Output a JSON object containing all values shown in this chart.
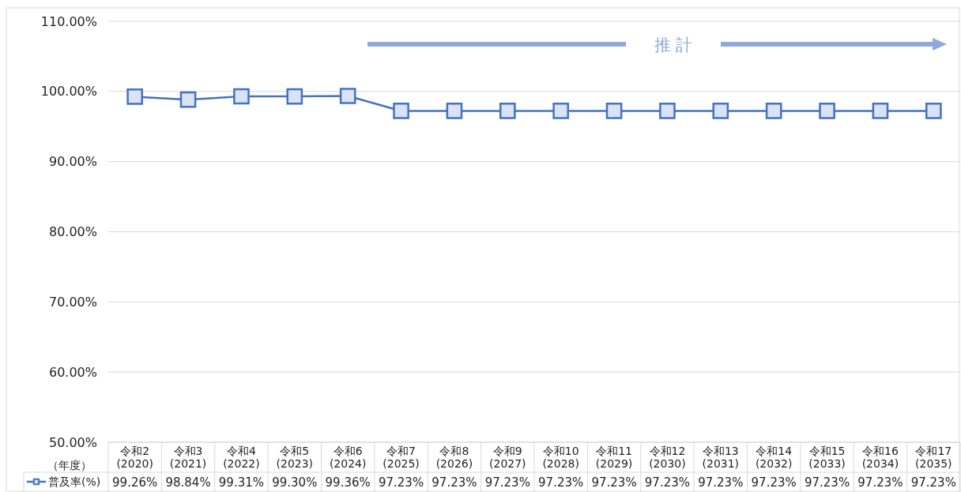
{
  "chart_data": {
    "type": "line",
    "xlabel": "（年度）",
    "categories": [
      "令和2\n(2020)",
      "令和3\n(2021)",
      "令和4\n(2022)",
      "令和5\n(2023)",
      "令和6\n(2024)",
      "令和7\n(2025)",
      "令和8\n(2026)",
      "令和9\n(2027)",
      "令和10\n(2028)",
      "令和11\n(2029)",
      "令和12\n(2030)",
      "令和13\n(2031)",
      "令和14\n(2032)",
      "令和15\n(2033)",
      "令和16\n(2034)",
      "令和17\n(2035)"
    ],
    "series": [
      {
        "name": "普及率(%)",
        "color": "#4472c4",
        "values": [
          99.26,
          98.84,
          99.31,
          99.3,
          99.36,
          97.23,
          97.23,
          97.23,
          97.23,
          97.23,
          97.23,
          97.23,
          97.23,
          97.23,
          97.23,
          97.23
        ],
        "value_labels": [
          "99.26%",
          "98.84%",
          "99.31%",
          "99.30%",
          "99.36%",
          "97.23%",
          "97.23%",
          "97.23%",
          "97.23%",
          "97.23%",
          "97.23%",
          "97.23%",
          "97.23%",
          "97.23%",
          "97.23%",
          "97.23%"
        ]
      }
    ],
    "ylim": [
      50,
      110
    ],
    "yticks": [
      {
        "value": 50,
        "label": "50.00%"
      },
      {
        "value": 60,
        "label": "60.00%"
      },
      {
        "value": 70,
        "label": "70.00%"
      },
      {
        "value": 80,
        "label": "80.00%"
      },
      {
        "value": 90,
        "label": "90.00%"
      },
      {
        "value": 100,
        "label": "100.00%"
      },
      {
        "value": 110,
        "label": "110.00%"
      }
    ],
    "grid": "y",
    "legend": "bottom",
    "marker": "square",
    "line_style": "solid",
    "annotations": [
      "推 計"
    ]
  }
}
